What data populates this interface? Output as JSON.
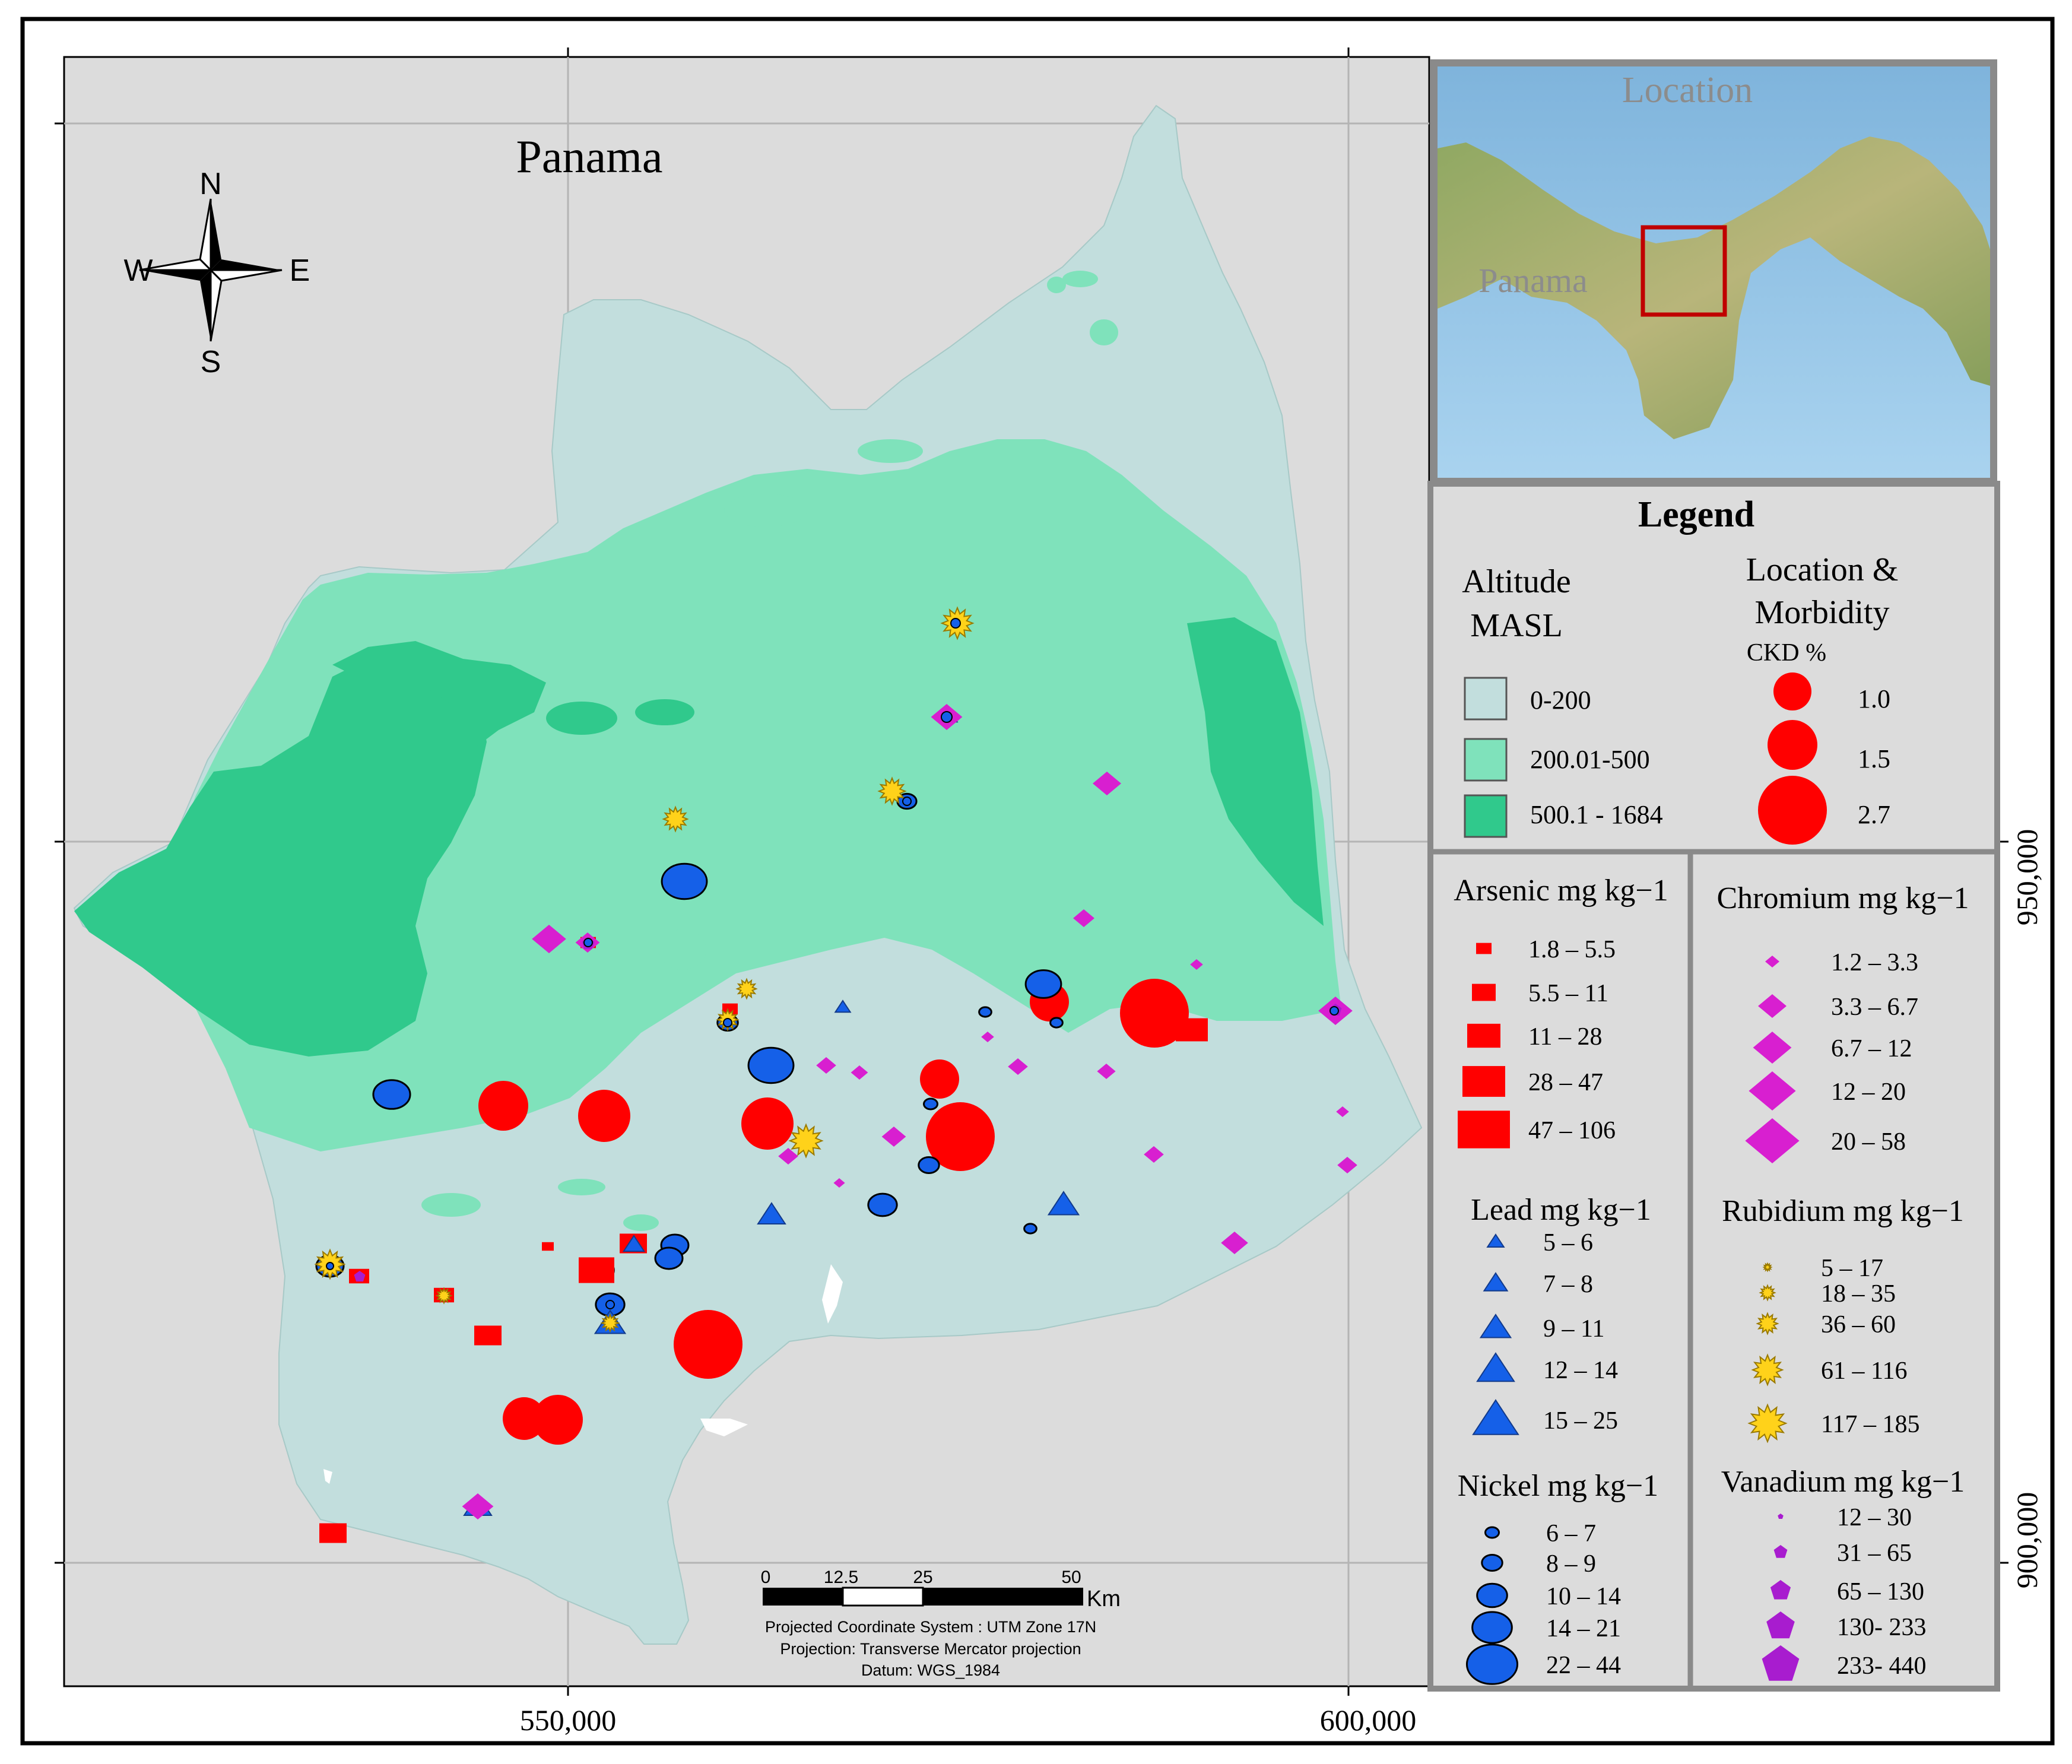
{
  "map": {
    "title": "Panama",
    "compass": {
      "n": "N",
      "s": "S",
      "e": "E",
      "w": "W"
    },
    "x_tick_labels": [
      "550,000",
      "600,000"
    ],
    "y_tick_labels": [
      "950,000",
      "900,000"
    ],
    "colors": {
      "frame": "#000000",
      "background": "#dcdcdc",
      "grid": "#b4b4b4",
      "altitude_low": "#c2dedd",
      "altitude_mid": "#7fe2bb",
      "altitude_high": "#30c98c",
      "ckd": "#ff0000",
      "arsenic": "#ff0000",
      "lead": "#1560e8",
      "nickel": "#1560e8",
      "chromium": "#d81fd0",
      "rubidium": "#ffd21a",
      "vanadium": "#a81ccf"
    }
  },
  "scale_bar": {
    "ticks": [
      "0",
      "12.5",
      "25",
      "50"
    ],
    "unit": "Km",
    "notes": [
      "Projected Coordinate System : UTM Zone 17N",
      "Projection: Transverse Mercator projection",
      "Datum: WGS_1984"
    ]
  },
  "inset": {
    "title": "Location",
    "country_label": "Panama",
    "highlight_color": "#c00000"
  },
  "legend": {
    "title": "Legend",
    "altitude": {
      "heading_line1": "Altitude",
      "heading_line2": "MASL",
      "classes": [
        "0-200",
        "200.01-500",
        "500.1 - 1684"
      ]
    },
    "ckd": {
      "heading_line1": "Location &",
      "heading_line2": "Morbidity",
      "sub": "CKD %",
      "values": [
        "1.0",
        "1.5",
        "2.7"
      ]
    }
  },
  "elements": {
    "arsenic": {
      "title": "Arsenic mg kg−1",
      "classes": [
        "1.8 – 5.5",
        "5.5 – 11",
        "11 – 28",
        "28 – 47",
        "47 – 106"
      ]
    },
    "lead": {
      "title": "Lead mg kg−1",
      "classes": [
        "5 – 6",
        "7 – 8",
        "9 – 11",
        "12 – 14",
        "15 – 25"
      ]
    },
    "nickel": {
      "title": "Nickel mg kg−1",
      "classes": [
        "6 – 7",
        "8 – 9",
        "10 – 14",
        "14 – 21",
        "22 – 44"
      ]
    },
    "chromium": {
      "title": "Chromium mg kg−1",
      "classes": [
        "1.2 – 3.3",
        "3.3 – 6.7",
        "6.7 – 12",
        "12 – 20",
        "20 – 58"
      ]
    },
    "rubidium": {
      "title": "Rubidium mg kg−1",
      "classes": [
        "5 – 17",
        "18 – 35",
        "36 – 60",
        "61 – 116",
        "117 – 185"
      ]
    },
    "vanadium": {
      "title": "Vanadium mg kg−1",
      "classes": [
        "12 – 30",
        "31 – 65",
        "65 – 130",
        "130- 233",
        "233- 440"
      ]
    }
  }
}
